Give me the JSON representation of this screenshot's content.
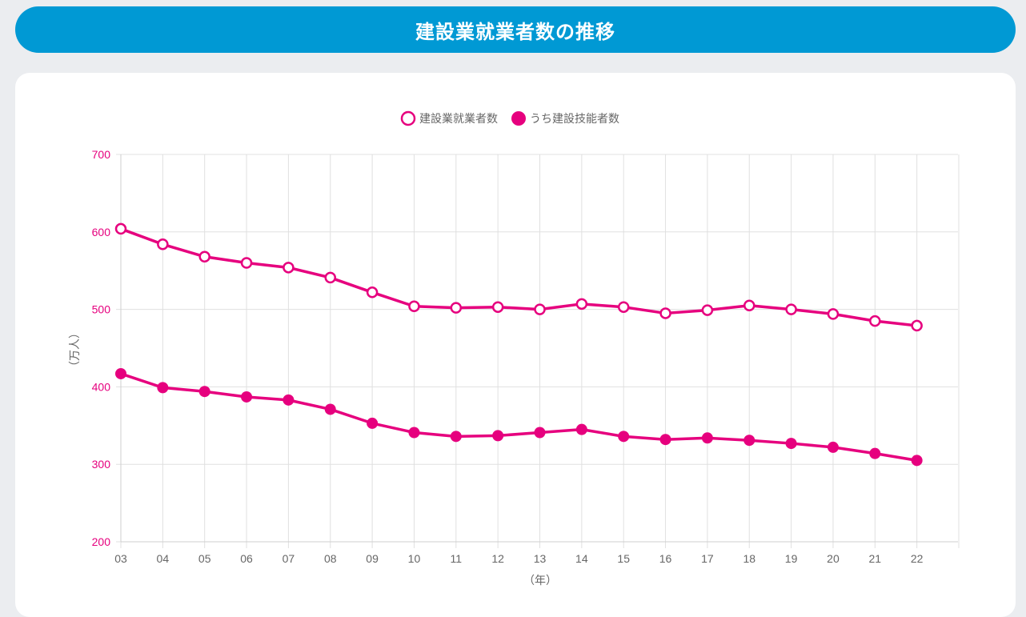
{
  "header": {
    "title": "建設業就業者数の推移"
  },
  "colors": {
    "banner": "#0099d4",
    "series": "#e6007e",
    "grid": "#e0e0e0",
    "page_bg": "#ebedf0"
  },
  "chart_data": {
    "type": "line",
    "title": "",
    "xlabel": "（年）",
    "ylabel": "（万人）",
    "categories": [
      "03",
      "04",
      "05",
      "06",
      "07",
      "08",
      "09",
      "10",
      "11",
      "12",
      "13",
      "14",
      "15",
      "16",
      "17",
      "18",
      "19",
      "20",
      "21",
      "22"
    ],
    "ylim": [
      200,
      700
    ],
    "yticks": [
      "700",
      "600",
      "500",
      "400",
      "300",
      "200"
    ],
    "grid": true,
    "legend_position": "top",
    "series": [
      {
        "name": "建設業就業者数",
        "marker": "open-circle",
        "values": [
          604,
          584,
          568,
          560,
          554,
          541,
          522,
          504,
          502,
          503,
          500,
          507,
          503,
          495,
          499,
          505,
          500,
          494,
          485,
          479
        ]
      },
      {
        "name": "うち建設技能者数",
        "marker": "filled-circle",
        "values": [
          417,
          399,
          394,
          387,
          383,
          371,
          353,
          341,
          336,
          337,
          341,
          345,
          336,
          332,
          334,
          331,
          327,
          322,
          314,
          305
        ]
      }
    ]
  }
}
